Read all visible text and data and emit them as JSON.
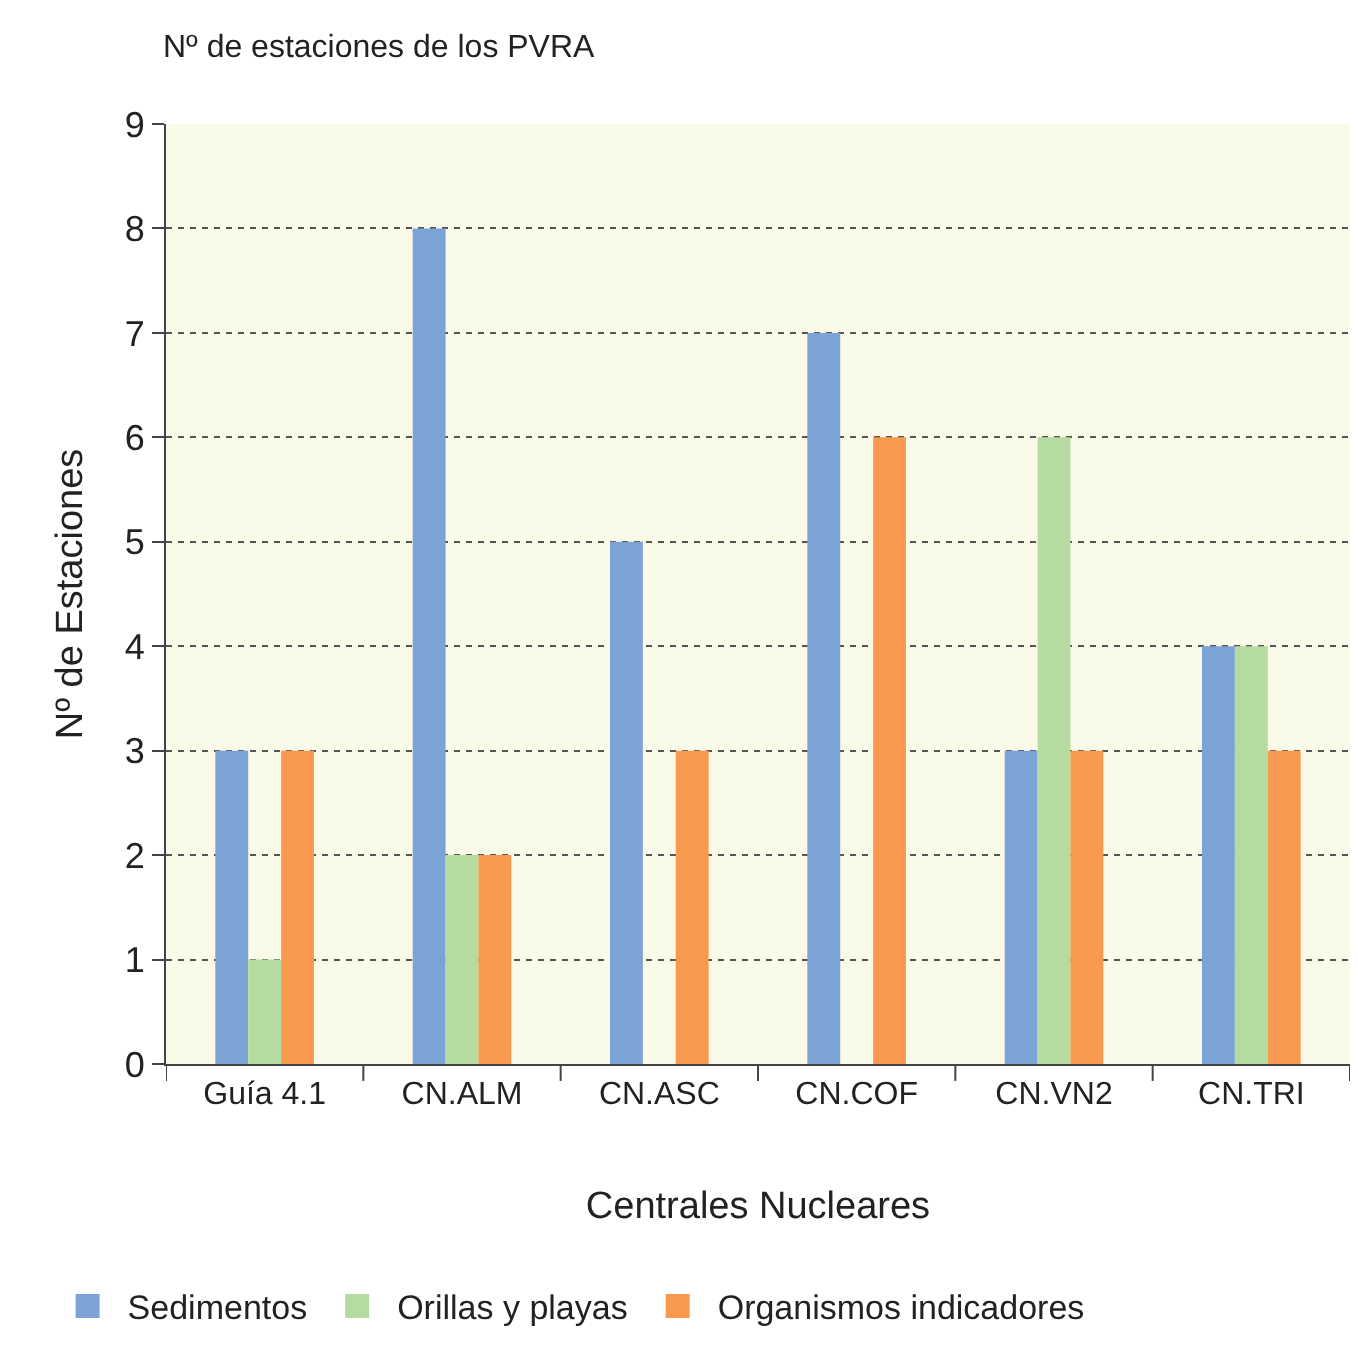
{
  "chart_data": {
    "type": "bar",
    "title": "Nº de estaciones de los PVRA",
    "xlabel": "Centrales Nucleares",
    "ylabel": "Nº de Estaciones",
    "categories": [
      "Guía 4.1",
      "CN.ALM",
      "CN.ASC",
      "CN.COF",
      "CN.VN2",
      "CN.TRI"
    ],
    "series": [
      {
        "name": "Sedimentos",
        "color": "#7ba3d6",
        "values": [
          3,
          8,
          5,
          7,
          3,
          4
        ]
      },
      {
        "name": "Orillas y playas",
        "color": "#b5dba0",
        "values": [
          1,
          2,
          null,
          null,
          6,
          4
        ]
      },
      {
        "name": "Organismos indicadores",
        "color": "#f79a50",
        "values": [
          3,
          2,
          3,
          6,
          3,
          3
        ]
      }
    ],
    "ylim": [
      0,
      9
    ],
    "yticks": [
      0,
      1,
      2,
      3,
      4,
      5,
      6,
      7,
      8,
      9
    ],
    "grid": "y",
    "legend": "bottom"
  }
}
